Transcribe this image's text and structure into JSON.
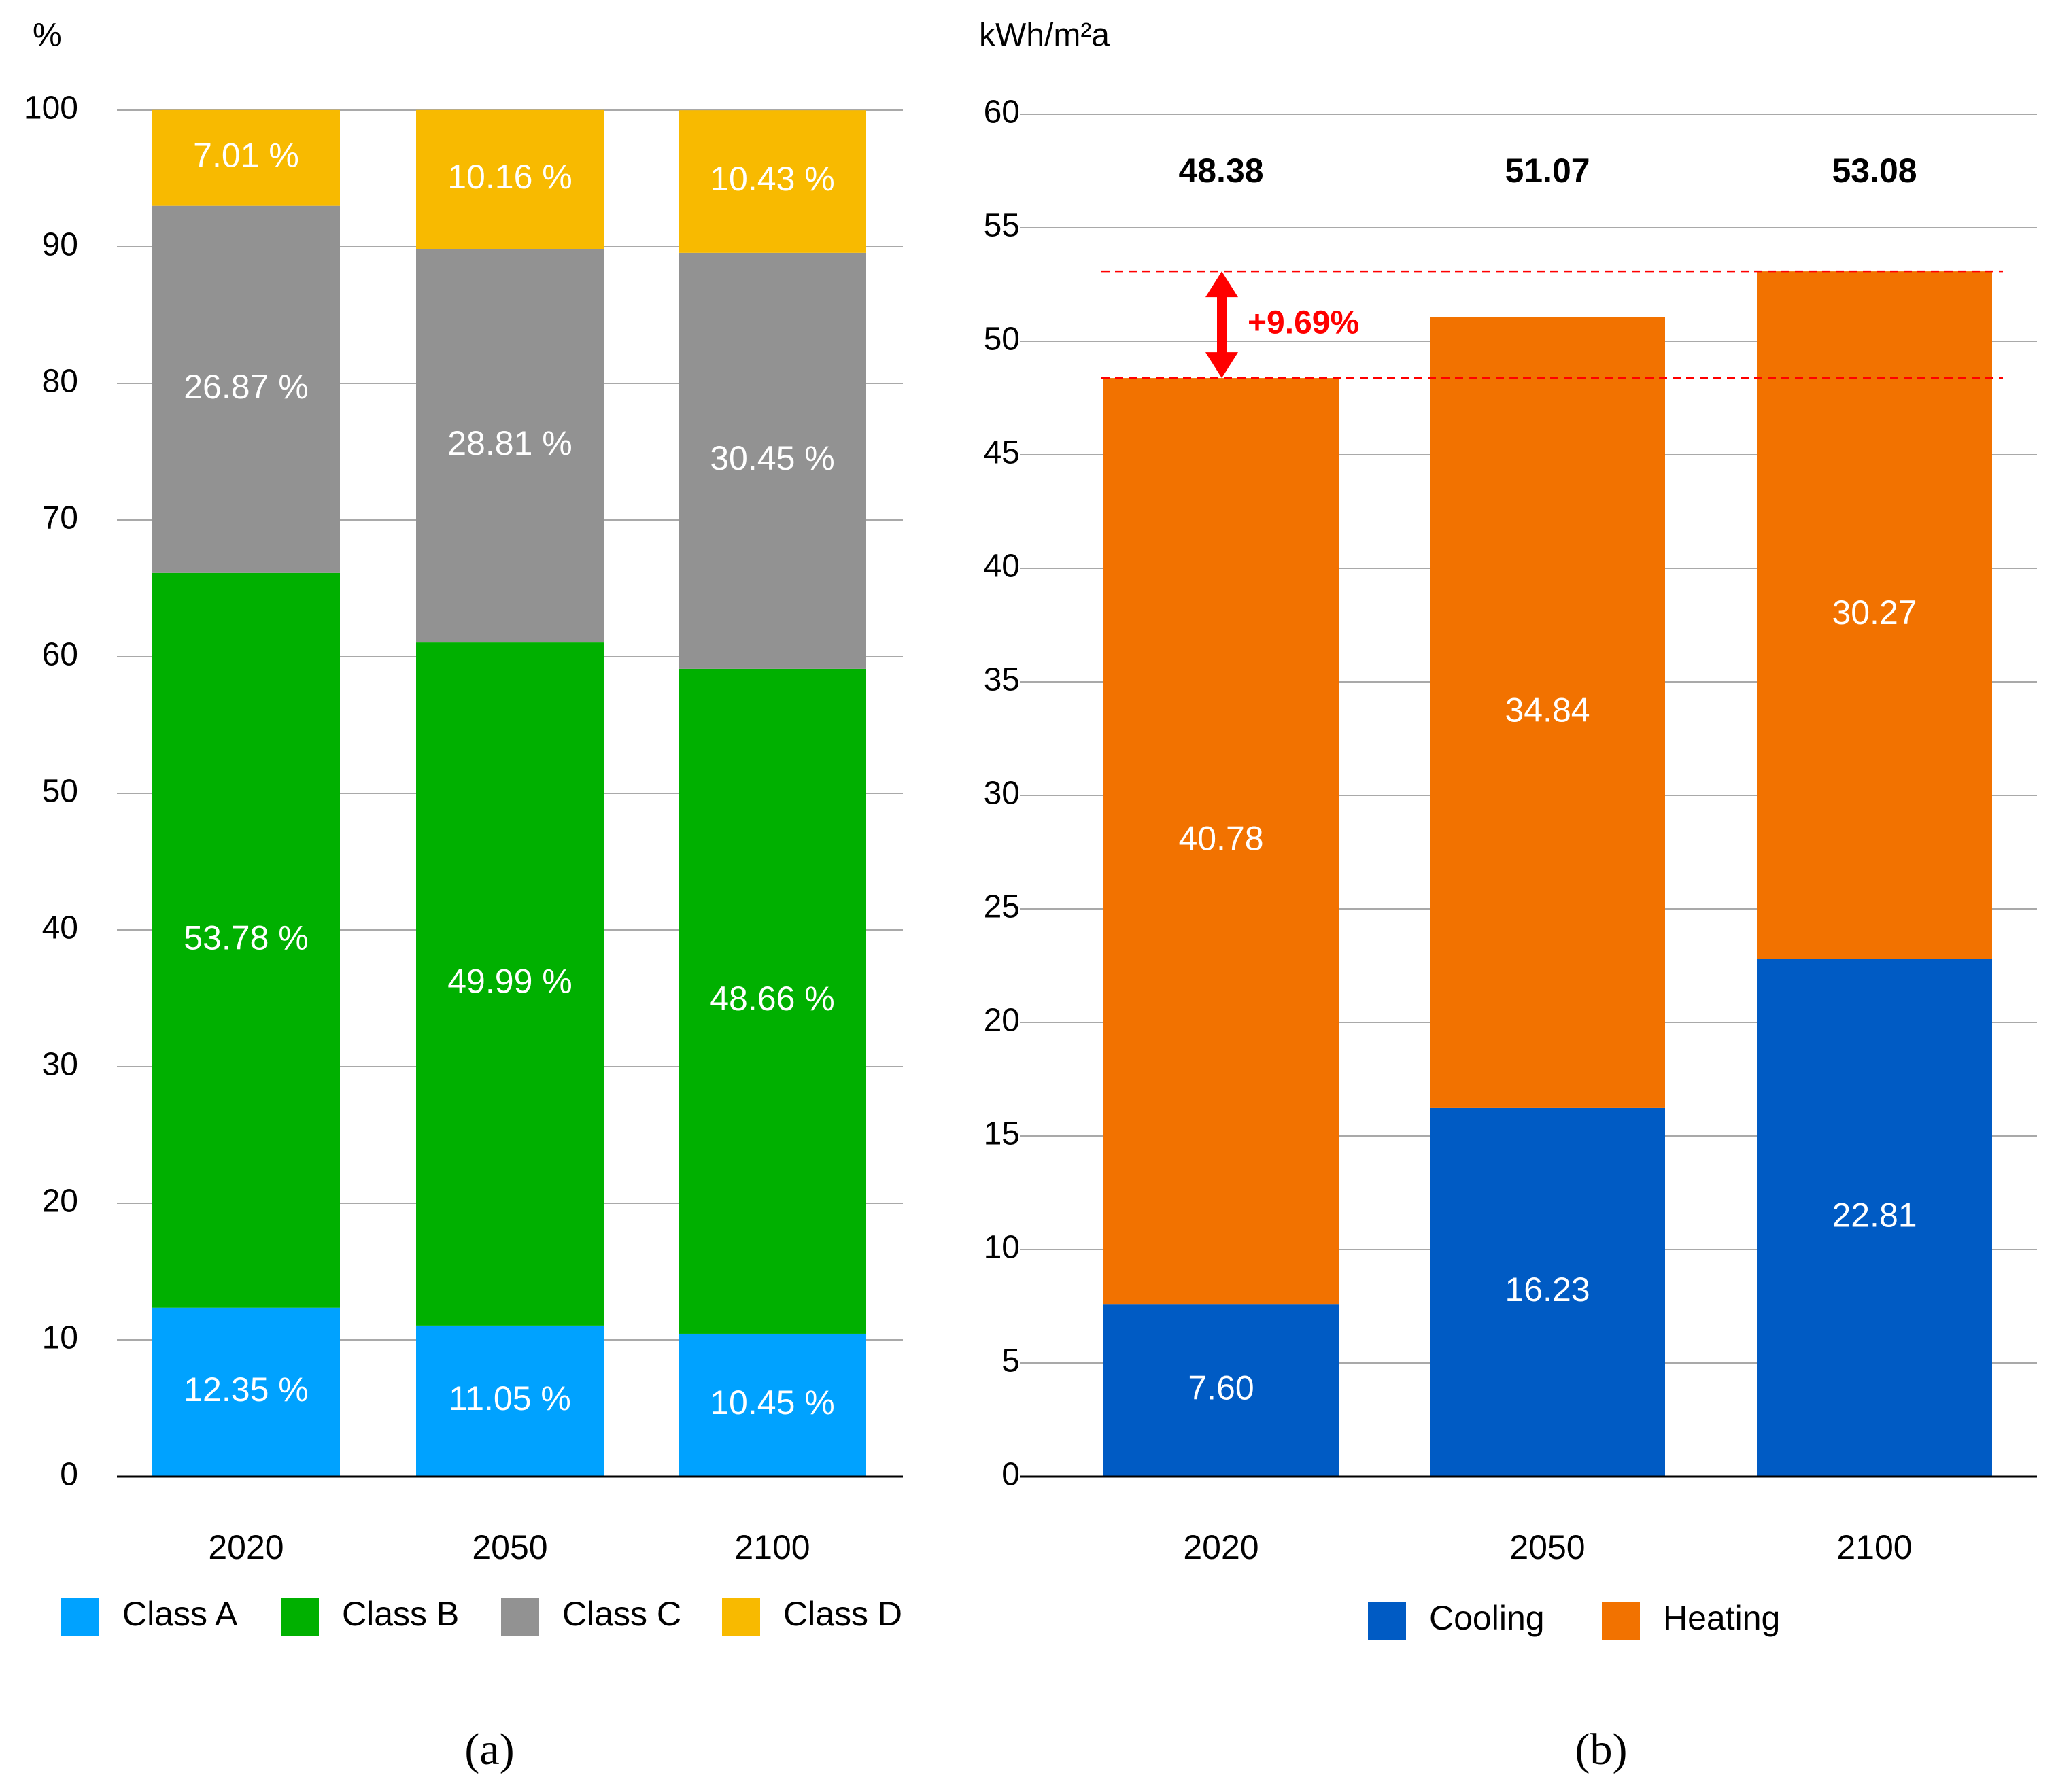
{
  "chart_data": [
    {
      "type": "bar",
      "stacked": true,
      "panel_label": "(a)",
      "ylabel": "%",
      "ylim": [
        0,
        100
      ],
      "y_ticks": [
        0,
        10,
        20,
        30,
        40,
        50,
        60,
        70,
        80,
        90,
        100
      ],
      "categories": [
        "2020",
        "2050",
        "2100"
      ],
      "series": [
        {
          "name": "Class A",
          "color": "#00A2FF",
          "values": [
            12.35,
            11.05,
            10.45
          ],
          "labels": [
            "12.35 %",
            "11.05 %",
            "10.45 %"
          ]
        },
        {
          "name": "Class B",
          "color": "#00B000",
          "values": [
            53.78,
            49.99,
            48.66
          ],
          "labels": [
            "53.78 %",
            "49.99 %",
            "48.66 %"
          ]
        },
        {
          "name": "Class C",
          "color": "#929292",
          "values": [
            26.87,
            28.81,
            30.45
          ],
          "labels": [
            "26.87 %",
            "28.81 %",
            "30.45 %"
          ]
        },
        {
          "name": "Class D",
          "color": "#F8BA00",
          "values": [
            7.01,
            10.16,
            10.43
          ],
          "labels": [
            "7.01 %",
            "10.16 %",
            "10.43 %"
          ]
        }
      ],
      "grid": true,
      "legend": "bottom"
    },
    {
      "type": "bar",
      "stacked": true,
      "panel_label": "(b)",
      "ylabel": "kWh/m²a",
      "ylim": [
        0,
        60
      ],
      "y_ticks": [
        0,
        5,
        10,
        15,
        20,
        25,
        30,
        35,
        40,
        45,
        50,
        55,
        60
      ],
      "categories": [
        "2020",
        "2050",
        "2100"
      ],
      "series": [
        {
          "name": "Cooling",
          "color": "#005BC4",
          "values": [
            7.6,
            16.23,
            22.81
          ],
          "labels": [
            "7.60",
            "16.23",
            "22.81"
          ]
        },
        {
          "name": "Heating",
          "color": "#F27200",
          "values": [
            40.78,
            34.84,
            30.27
          ],
          "labels": [
            "40.78",
            "34.84",
            "30.27"
          ]
        }
      ],
      "totals": [
        48.38,
        51.07,
        53.08
      ],
      "total_labels": [
        "48.38",
        "51.07",
        "53.08"
      ],
      "annotation": {
        "text": "+9.69%",
        "from_value": 48.38,
        "to_value": 53.08,
        "color": "#FF0000"
      },
      "grid": true,
      "legend": "bottom"
    }
  ]
}
